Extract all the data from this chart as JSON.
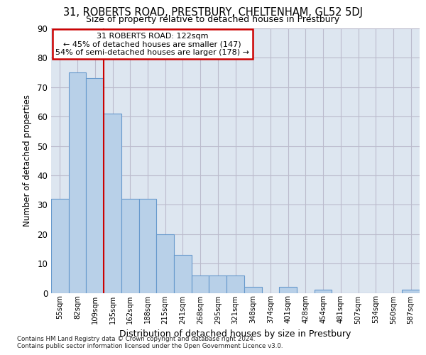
{
  "title1": "31, ROBERTS ROAD, PRESTBURY, CHELTENHAM, GL52 5DJ",
  "title2": "Size of property relative to detached houses in Prestbury",
  "xlabel": "Distribution of detached houses by size in Prestbury",
  "ylabel": "Number of detached properties",
  "categories": [
    "55sqm",
    "82sqm",
    "109sqm",
    "135sqm",
    "162sqm",
    "188sqm",
    "215sqm",
    "241sqm",
    "268sqm",
    "295sqm",
    "321sqm",
    "348sqm",
    "374sqm",
    "401sqm",
    "428sqm",
    "454sqm",
    "481sqm",
    "507sqm",
    "534sqm",
    "560sqm",
    "587sqm"
  ],
  "values": [
    32,
    75,
    73,
    61,
    32,
    32,
    20,
    13,
    6,
    6,
    6,
    2,
    0,
    2,
    0,
    1,
    0,
    0,
    0,
    0,
    1
  ],
  "bar_color": "#b8d0e8",
  "bar_edge_color": "#6699cc",
  "vline_x": 2.5,
  "annotation_text": "31 ROBERTS ROAD: 122sqm\n← 45% of detached houses are smaller (147)\n54% of semi-detached houses are larger (178) →",
  "annotation_box_color": "#ffffff",
  "annotation_box_edge_color": "#cc0000",
  "vline_color": "#cc0000",
  "ylim": [
    0,
    90
  ],
  "yticks": [
    0,
    10,
    20,
    30,
    40,
    50,
    60,
    70,
    80,
    90
  ],
  "grid_color": "#bbbbcc",
  "bg_color": "#dde6f0",
  "footer1": "Contains HM Land Registry data © Crown copyright and database right 2024.",
  "footer2": "Contains public sector information licensed under the Open Government Licence v3.0.",
  "title1_fontsize": 10.5,
  "title2_fontsize": 9.0
}
